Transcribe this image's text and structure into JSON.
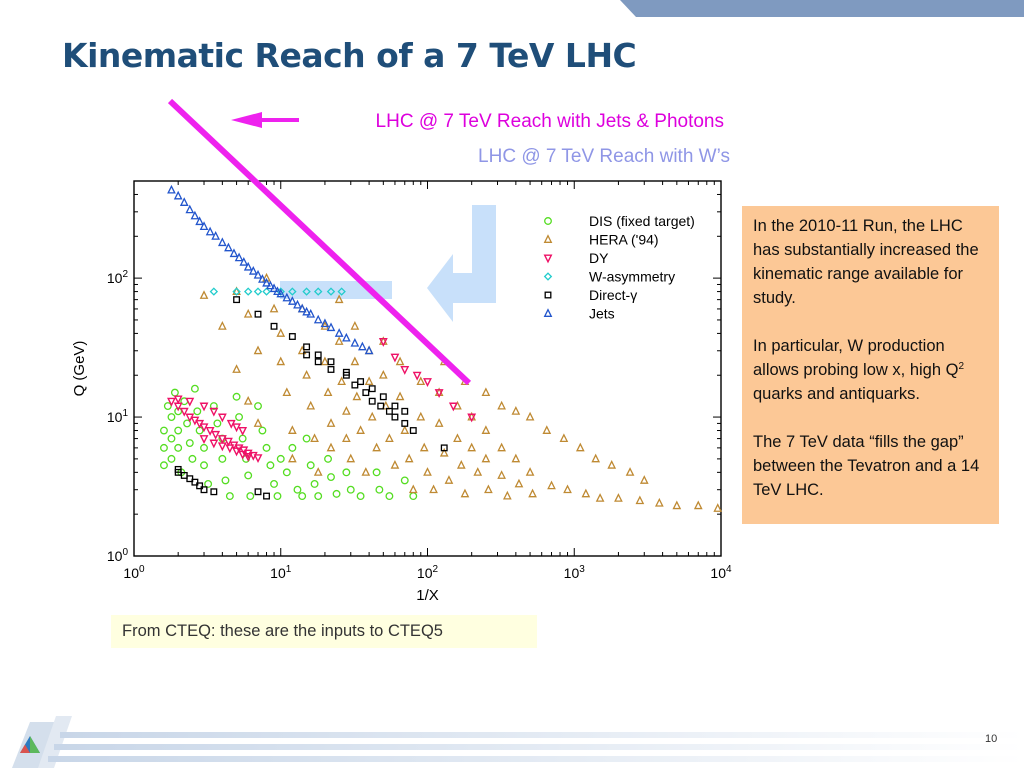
{
  "slide": {
    "title": "Kinematic Reach of a 7 TeV LHC",
    "annotation_jets": "LHC @ 7 TeV Reach with Jets & Photons",
    "annotation_w": "LHC @ 7 TeV Reach with W’s",
    "side_text": {
      "p1": "In the 2010-11 Run, the LHC has substantially increased the kinematic range available for study.",
      "p2_a": "In particular, W production allows probing low x, high Q",
      "p2_sup": "2",
      "p2_b": " quarks and antiquarks.",
      "p3": "The 7 TeV data “fills the gap” between the Tevatron and a 14 TeV LHC."
    },
    "caption": "From CTEQ: these are the inputs to CTEQ5",
    "page_number": "10",
    "colors": {
      "title": "#1f4e79",
      "jets_annotation": "#dd00dd",
      "w_annotation": "#8f96e6",
      "side_box": "#fcc896",
      "caption_box": "#ffffe0",
      "header_bar": "#7f9ac0"
    }
  },
  "chart_data": {
    "type": "scatter",
    "xlabel": "1/X",
    "ylabel": "Q (GeV)",
    "x_scale": "log",
    "y_scale": "log",
    "xlim": [
      1,
      10000
    ],
    "ylim": [
      1,
      500
    ],
    "x_ticks": [
      {
        "value": 1,
        "base": "10",
        "exp": "0"
      },
      {
        "value": 10,
        "base": "10",
        "exp": "1"
      },
      {
        "value": 100,
        "base": "10",
        "exp": "2"
      },
      {
        "value": 1000,
        "base": "10",
        "exp": "3"
      },
      {
        "value": 10000,
        "base": "10",
        "exp": "4"
      }
    ],
    "y_ticks": [
      {
        "value": 1,
        "base": "10",
        "exp": "0"
      },
      {
        "value": 10,
        "base": "10",
        "exp": "1"
      },
      {
        "value": 100,
        "base": "10",
        "exp": "2"
      }
    ],
    "legend_position": "top-right",
    "series": [
      {
        "name": "DIS (fixed target)",
        "marker": "circle",
        "color": "#55dd22",
        "points": [
          [
            1.6,
            8
          ],
          [
            1.6,
            6
          ],
          [
            1.6,
            4.5
          ],
          [
            1.7,
            12
          ],
          [
            1.8,
            10
          ],
          [
            1.8,
            7
          ],
          [
            1.8,
            5
          ],
          [
            1.9,
            15
          ],
          [
            2,
            11
          ],
          [
            2,
            8
          ],
          [
            2,
            6
          ],
          [
            2.1,
            4
          ],
          [
            2.2,
            13
          ],
          [
            2.3,
            9
          ],
          [
            2.4,
            6.5
          ],
          [
            2.5,
            5
          ],
          [
            2.6,
            16
          ],
          [
            2.7,
            11
          ],
          [
            2.8,
            8
          ],
          [
            3,
            6
          ],
          [
            3,
            4.5
          ],
          [
            3.2,
            3.3
          ],
          [
            3.5,
            12
          ],
          [
            3.7,
            9
          ],
          [
            4,
            7
          ],
          [
            4,
            5
          ],
          [
            4.2,
            3.5
          ],
          [
            4.5,
            2.7
          ],
          [
            5,
            14
          ],
          [
            5.2,
            10
          ],
          [
            5.5,
            7
          ],
          [
            5.8,
            5
          ],
          [
            6,
            3.8
          ],
          [
            6.2,
            2.7
          ],
          [
            7,
            12
          ],
          [
            7.5,
            8
          ],
          [
            8,
            6
          ],
          [
            8.5,
            4.5
          ],
          [
            9,
            3.3
          ],
          [
            9.5,
            2.7
          ],
          [
            10,
            5
          ],
          [
            11,
            4
          ],
          [
            12,
            6
          ],
          [
            13,
            3
          ],
          [
            14,
            2.7
          ],
          [
            15,
            7
          ],
          [
            16,
            4.5
          ],
          [
            17,
            3.3
          ],
          [
            18,
            2.7
          ],
          [
            21,
            5
          ],
          [
            22,
            3.7
          ],
          [
            24,
            2.8
          ],
          [
            28,
            4
          ],
          [
            30,
            3
          ],
          [
            35,
            2.7
          ],
          [
            45,
            4
          ],
          [
            47,
            3
          ],
          [
            55,
            2.7
          ],
          [
            70,
            3.5
          ],
          [
            80,
            2.7
          ]
        ]
      },
      {
        "name": "HERA ('94)",
        "marker": "triangle-up",
        "color": "#bf8a33",
        "points": [
          [
            3,
            75
          ],
          [
            4,
            45
          ],
          [
            5,
            80
          ],
          [
            5,
            22
          ],
          [
            6,
            55
          ],
          [
            6,
            13
          ],
          [
            7,
            30
          ],
          [
            7,
            9
          ],
          [
            8,
            100
          ],
          [
            9,
            60
          ],
          [
            10,
            40
          ],
          [
            10,
            25
          ],
          [
            11,
            15
          ],
          [
            12,
            8
          ],
          [
            12,
            5
          ],
          [
            14,
            60
          ],
          [
            14,
            30
          ],
          [
            15,
            20
          ],
          [
            16,
            12
          ],
          [
            17,
            7
          ],
          [
            18,
            4
          ],
          [
            20,
            45
          ],
          [
            20,
            25
          ],
          [
            21,
            15
          ],
          [
            22,
            9
          ],
          [
            22,
            6
          ],
          [
            25,
            70
          ],
          [
            25,
            35
          ],
          [
            26,
            18
          ],
          [
            28,
            11
          ],
          [
            28,
            7
          ],
          [
            30,
            5
          ],
          [
            32,
            45
          ],
          [
            32,
            25
          ],
          [
            33,
            14
          ],
          [
            35,
            8
          ],
          [
            38,
            4
          ],
          [
            40,
            30
          ],
          [
            40,
            18
          ],
          [
            42,
            10
          ],
          [
            45,
            6
          ],
          [
            50,
            35
          ],
          [
            50,
            20
          ],
          [
            52,
            12
          ],
          [
            55,
            7
          ],
          [
            60,
            4.5
          ],
          [
            65,
            25
          ],
          [
            65,
            14
          ],
          [
            70,
            8
          ],
          [
            75,
            5
          ],
          [
            80,
            3
          ],
          [
            90,
            18
          ],
          [
            90,
            10
          ],
          [
            95,
            6
          ],
          [
            100,
            4
          ],
          [
            110,
            3
          ],
          [
            120,
            15
          ],
          [
            120,
            9
          ],
          [
            130,
            5.5
          ],
          [
            140,
            3.5
          ],
          [
            160,
            12
          ],
          [
            160,
            7
          ],
          [
            170,
            4.5
          ],
          [
            180,
            2.8
          ],
          [
            200,
            10
          ],
          [
            200,
            6
          ],
          [
            220,
            4
          ],
          [
            250,
            8
          ],
          [
            250,
            5
          ],
          [
            260,
            3
          ],
          [
            320,
            6
          ],
          [
            320,
            3.8
          ],
          [
            350,
            2.7
          ],
          [
            400,
            5
          ],
          [
            420,
            3.3
          ],
          [
            500,
            4
          ],
          [
            520,
            2.8
          ],
          [
            700,
            3.2
          ],
          [
            900,
            3
          ],
          [
            1200,
            2.8
          ],
          [
            1500,
            2.6
          ],
          [
            2000,
            2.6
          ],
          [
            2800,
            2.5
          ],
          [
            3800,
            2.4
          ],
          [
            5000,
            2.3
          ],
          [
            7000,
            2.3
          ],
          [
            9500,
            2.2
          ],
          [
            130,
            25
          ],
          [
            180,
            18
          ],
          [
            250,
            15
          ],
          [
            320,
            12
          ],
          [
            400,
            11
          ],
          [
            500,
            10
          ],
          [
            650,
            8
          ],
          [
            850,
            7
          ],
          [
            1100,
            6
          ],
          [
            1400,
            5
          ],
          [
            1800,
            4.5
          ],
          [
            2400,
            4
          ],
          [
            3000,
            3.5
          ]
        ]
      },
      {
        "name": "DY",
        "marker": "triangle-down",
        "color": "#ee1166",
        "points": [
          [
            1.8,
            13
          ],
          [
            2,
            12
          ],
          [
            2.2,
            11
          ],
          [
            2.4,
            10
          ],
          [
            2.6,
            9.5
          ],
          [
            2.8,
            9
          ],
          [
            3,
            8.5
          ],
          [
            3.3,
            8
          ],
          [
            3.6,
            7.5
          ],
          [
            4,
            7
          ],
          [
            4.4,
            6.7
          ],
          [
            4.8,
            6.3
          ],
          [
            5.2,
            6
          ],
          [
            5.6,
            5.8
          ],
          [
            6,
            5.5
          ],
          [
            6.5,
            5.3
          ],
          [
            7,
            5.1
          ],
          [
            2,
            13.5
          ],
          [
            2.4,
            13
          ],
          [
            3,
            12
          ],
          [
            3.5,
            11
          ],
          [
            4,
            10
          ],
          [
            4.6,
            9
          ],
          [
            5,
            8.5
          ],
          [
            5.5,
            8
          ],
          [
            3,
            7
          ],
          [
            3.5,
            6.5
          ],
          [
            4,
            6.2
          ],
          [
            4.5,
            6
          ],
          [
            5,
            5.7
          ],
          [
            5.5,
            5.4
          ],
          [
            6,
            5.2
          ],
          [
            50,
            35
          ],
          [
            60,
            27
          ],
          [
            70,
            22
          ],
          [
            85,
            20
          ],
          [
            100,
            18
          ],
          [
            120,
            15
          ],
          [
            150,
            12
          ],
          [
            200,
            10
          ]
        ]
      },
      {
        "name": "W-asymmetry",
        "marker": "diamond",
        "color": "#22cccc",
        "points": [
          [
            3.5,
            80
          ],
          [
            5,
            80
          ],
          [
            6,
            80
          ],
          [
            7,
            80
          ],
          [
            8,
            80
          ],
          [
            10,
            80
          ],
          [
            12,
            80
          ],
          [
            15,
            80
          ],
          [
            18,
            80
          ],
          [
            22,
            80
          ],
          [
            26,
            80
          ]
        ]
      },
      {
        "name": "Direct-γ",
        "marker": "square",
        "color": "#000000",
        "points": [
          [
            5,
            70
          ],
          [
            7,
            55
          ],
          [
            9,
            45
          ],
          [
            12,
            38
          ],
          [
            15,
            32
          ],
          [
            18,
            28
          ],
          [
            22,
            25
          ],
          [
            28,
            21
          ],
          [
            35,
            18
          ],
          [
            42,
            16
          ],
          [
            50,
            14
          ],
          [
            60,
            12
          ],
          [
            70,
            11
          ],
          [
            15,
            28
          ],
          [
            18,
            25
          ],
          [
            22,
            22
          ],
          [
            28,
            20
          ],
          [
            32,
            17
          ],
          [
            38,
            15
          ],
          [
            42,
            13
          ],
          [
            48,
            12
          ],
          [
            55,
            11
          ],
          [
            60,
            10
          ],
          [
            70,
            9
          ],
          [
            80,
            8
          ],
          [
            2,
            4
          ],
          [
            2.2,
            3.8
          ],
          [
            2.4,
            3.6
          ],
          [
            2.6,
            3.4
          ],
          [
            2.8,
            3.2
          ],
          [
            3,
            3
          ],
          [
            2,
            4.2
          ],
          [
            3.5,
            2.9
          ],
          [
            7,
            2.9
          ],
          [
            8,
            2.7
          ],
          [
            130,
            6
          ]
        ]
      },
      {
        "name": "Jets",
        "marker": "triangle-up",
        "color": "#2255cc",
        "points": [
          [
            1.8,
            430
          ],
          [
            2,
            390
          ],
          [
            2.2,
            350
          ],
          [
            2.4,
            310
          ],
          [
            2.6,
            280
          ],
          [
            2.8,
            255
          ],
          [
            3,
            235
          ],
          [
            3.3,
            215
          ],
          [
            3.6,
            200
          ],
          [
            4,
            180
          ],
          [
            4.4,
            165
          ],
          [
            4.8,
            150
          ],
          [
            5.2,
            140
          ],
          [
            5.6,
            130
          ],
          [
            6,
            120
          ],
          [
            6.5,
            112
          ],
          [
            7,
            105
          ],
          [
            7.5,
            98
          ],
          [
            8,
            92
          ],
          [
            8.5,
            88
          ],
          [
            9,
            84
          ],
          [
            9.5,
            80
          ],
          [
            10,
            77
          ],
          [
            11,
            72
          ],
          [
            12,
            68
          ],
          [
            13,
            64
          ],
          [
            14,
            60
          ],
          [
            15,
            57
          ],
          [
            16,
            55
          ],
          [
            18,
            50
          ],
          [
            20,
            47
          ],
          [
            22,
            44
          ],
          [
            25,
            40
          ],
          [
            28,
            37
          ],
          [
            32,
            34
          ],
          [
            36,
            32
          ],
          [
            40,
            30
          ]
        ]
      }
    ]
  }
}
